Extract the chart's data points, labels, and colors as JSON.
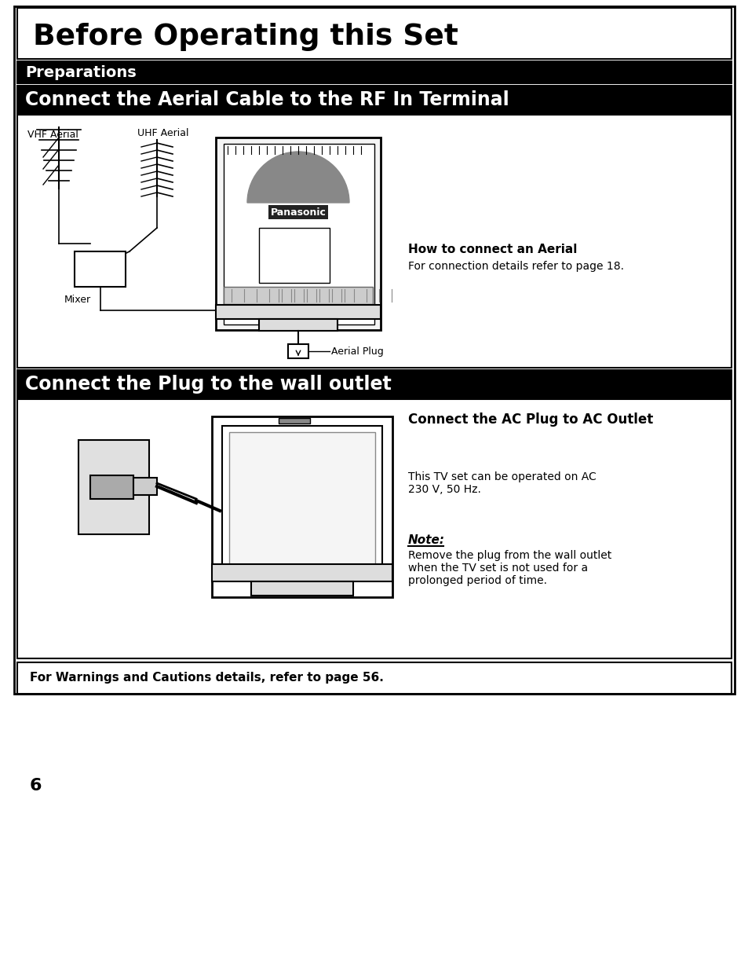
{
  "page_bg": "#ffffff",
  "page_number": "6",
  "main_title": "Before Operating this Set",
  "section1_title": "Preparations",
  "section2_title": "Connect the Aerial Cable to the RF In Terminal",
  "section2_label1": "VHF Aerial",
  "section2_label2": "UHF Aerial",
  "section2_label3": "Mixer",
  "section2_label4": "Aerial Plug",
  "section2_info_bold": "How to connect an Aerial",
  "section2_info_normal": "For connection details refer to page 18.",
  "section3_title": "Connect the Plug to the wall outlet",
  "section3_info_bold": "Connect the AC Plug to AC Outlet",
  "section3_info1": "This TV set can be operated on AC\n230 V, 50 Hz.",
  "section3_note_bold": "Note:",
  "section3_note_text": "Remove the plug from the wall outlet\nwhen the TV set is not used for a\nprolonged period of time.",
  "footer_text": "For Warnings and Cautions details, refer to page 56."
}
